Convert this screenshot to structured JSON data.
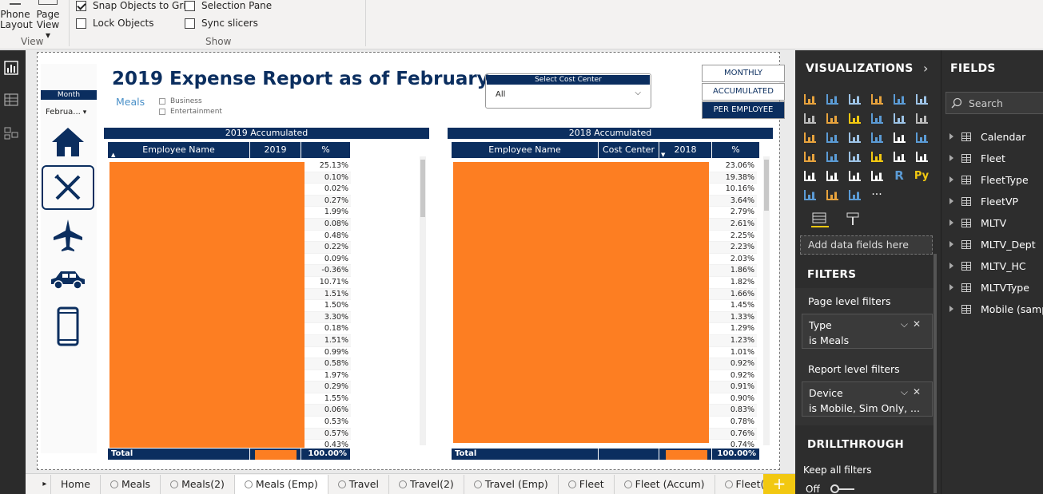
{
  "ribbon": {
    "phone_layout": [
      "Phone",
      "Layout"
    ],
    "page_view": [
      "Page",
      "View ▾"
    ],
    "view_group": "View",
    "show_group": "Show",
    "checks": [
      {
        "label": "Snap Objects to Grid",
        "checked": true
      },
      {
        "label": "Lock Objects",
        "checked": false
      },
      {
        "label": "Selection Pane",
        "checked": false
      },
      {
        "label": "Sync slicers",
        "checked": false
      }
    ]
  },
  "report": {
    "title": "2019 Expense Report as of February",
    "subtitle": "Meals",
    "type_options": [
      "Business",
      "Entertainment"
    ],
    "month_slicer": {
      "label": "Month",
      "value": "Februa..."
    },
    "cost_center_slicer": {
      "label": "Select Cost Center",
      "value": "All"
    },
    "segment_buttons": [
      {
        "label": "MONTHLY",
        "active": false
      },
      {
        "label": "ACCUMULATED",
        "active": false
      },
      {
        "label": "PER EMPLOYEE",
        "active": true
      }
    ],
    "nav_icons": [
      "home-icon",
      "meals-icon",
      "airplane-icon",
      "car-icon",
      "mobile-phone-icon"
    ]
  },
  "table_2019": {
    "title": "2019 Accumulated",
    "columns": [
      "Employee Name",
      "2019",
      "%"
    ],
    "percents": [
      "25.13%",
      "0.10%",
      "0.02%",
      "0.27%",
      "1.99%",
      "0.08%",
      "0.48%",
      "0.22%",
      "0.09%",
      "-0.36%",
      "10.71%",
      "1.51%",
      "1.50%",
      "3.30%",
      "0.18%",
      "1.51%",
      "0.99%",
      "0.58%",
      "1.97%",
      "0.29%",
      "1.55%",
      "0.06%",
      "0.53%",
      "0.57%",
      "0.43%"
    ],
    "total_label": "Total",
    "total_pct": "100.00%"
  },
  "table_2018": {
    "title": "2018 Accumulated",
    "columns": [
      "Employee Name",
      "Cost Center",
      "2018",
      "%"
    ],
    "percents": [
      "23.06%",
      "19.38%",
      "10.16%",
      "3.64%",
      "2.79%",
      "2.61%",
      "2.25%",
      "2.23%",
      "2.03%",
      "1.86%",
      "1.82%",
      "1.66%",
      "1.45%",
      "1.33%",
      "1.29%",
      "1.23%",
      "1.01%",
      "0.92%",
      "0.92%",
      "0.91%",
      "0.90%",
      "0.83%",
      "0.78%",
      "0.76%",
      "0.74%"
    ],
    "total_label": "Total",
    "total_pct": "100.00%"
  },
  "tabs": [
    "Home",
    "Meals",
    "Meals(2)",
    "Meals (Emp)",
    "Travel",
    "Travel(2)",
    "Travel (Emp)",
    "Fleet",
    "Fleet (Accum)",
    "Fleet(per)"
  ],
  "active_tab": "Meals (Emp)",
  "viz_pane": {
    "title": "VISUALIZATIONS",
    "add_fields": "Add data fields here",
    "filters_title": "FILTERS",
    "page_filters_label": "Page level filters",
    "page_filter": {
      "field": "Type",
      "value": "is Meals"
    },
    "report_filters_label": "Report level filters",
    "report_filter": {
      "field": "Device",
      "value": "is Mobile, Sim Only, ..."
    },
    "drillthrough_title": "DRILLTHROUGH",
    "keep_filters_label": "Keep all filters",
    "toggle_state": "Off"
  },
  "fields_pane": {
    "title": "FIELDS",
    "search_placeholder": "Search",
    "tables": [
      "Calendar",
      "Fleet",
      "FleetType",
      "FleetVP",
      "MLTV",
      "MLTV_Dept",
      "MLTV_HC",
      "MLTVType",
      "Mobile (sample)"
    ]
  },
  "colors": {
    "navy": "#0b2e5f",
    "redact": "#fd7e22",
    "accent_yellow": "#f2c811"
  }
}
